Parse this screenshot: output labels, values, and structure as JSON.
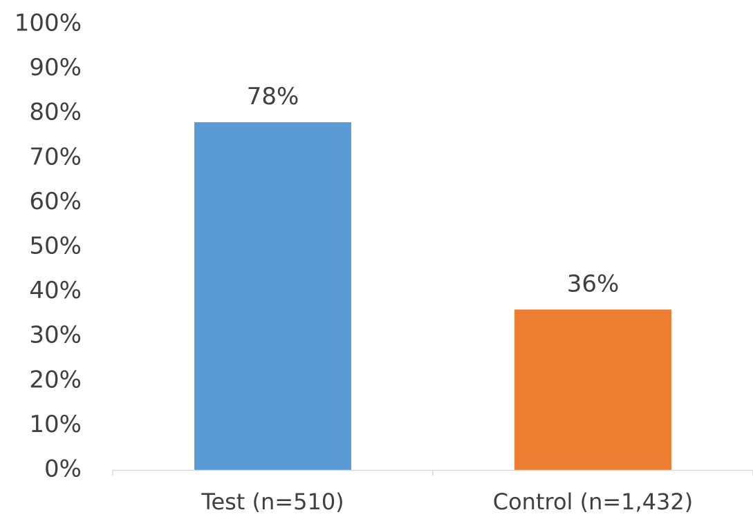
{
  "chart_data": {
    "type": "bar",
    "title": "",
    "xlabel": "",
    "ylabel": "",
    "categories": [
      "Test (n=510)",
      "Control (n=1,432)"
    ],
    "values": [
      78,
      36
    ],
    "data_labels": [
      "78%",
      "36%"
    ],
    "bar_colors": [
      "#5b9bd5",
      "#ed7d31"
    ],
    "ylim": [
      0,
      100
    ],
    "yticks": [
      0,
      10,
      20,
      30,
      40,
      50,
      60,
      70,
      80,
      90,
      100
    ],
    "ytick_labels": [
      "0%",
      "10%",
      "20%",
      "30%",
      "40%",
      "50%",
      "60%",
      "70%",
      "80%",
      "90%",
      "100%"
    ],
    "grid": false,
    "legend": "none"
  }
}
